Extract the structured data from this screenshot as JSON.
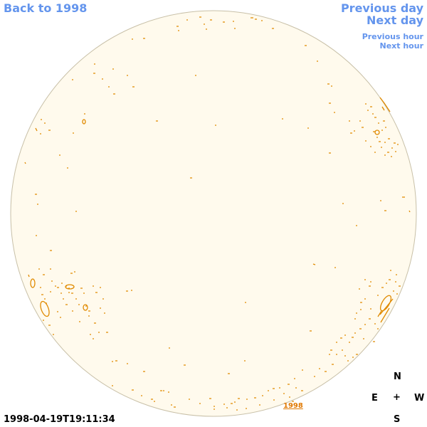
{
  "nav": {
    "back": "Back to 1998",
    "previous_day": "Previous day",
    "next_day": "Next day",
    "previous_hour": "Previous hour",
    "next_hour": "Next hour"
  },
  "map": {
    "year_marker": "1998",
    "disk_fill": "#fffaed",
    "disk_border": "#c8c0a8",
    "contour_color": "#e08a00"
  },
  "compass": {
    "north": "N",
    "east": "E",
    "center": "+",
    "west": "W",
    "south": "S"
  },
  "timestamp": "1998-04-19T19:11:34"
}
